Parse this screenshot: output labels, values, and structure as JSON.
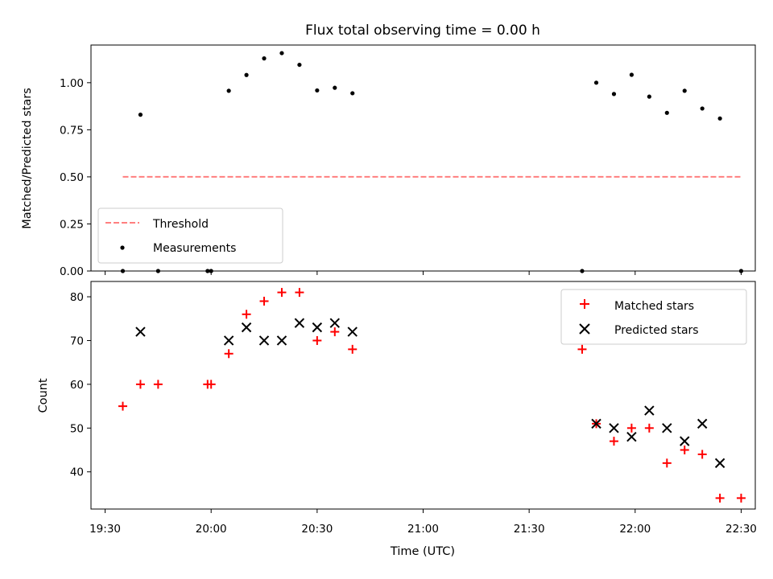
{
  "chart_data": [
    {
      "type": "scatter",
      "title": "Flux total observing time = 0.00 h",
      "ylabel": "Matched/Predicted stars",
      "xlabel": "",
      "xlim": [
        "19:26",
        "22:34"
      ],
      "ylim": [
        0,
        1.2
      ],
      "x_ticks": [
        "19:30",
        "20:00",
        "20:30",
        "21:00",
        "21:30",
        "22:00",
        "22:30"
      ],
      "x_tick_labels_visible": false,
      "y_ticks": [
        0,
        0.25,
        0.5,
        0.75,
        1.0
      ],
      "y_tick_labels": [
        "0.00",
        "0.25",
        "0.50",
        "0.75",
        "1.00"
      ],
      "grid": false,
      "legend_position": "lower-left",
      "series": [
        {
          "name": "Threshold",
          "kind": "line",
          "style": "dashed",
          "color": "#ff7f7f",
          "x": [
            "19:35",
            "22:30"
          ],
          "y": [
            0.5,
            0.5
          ]
        },
        {
          "name": "Measurements",
          "kind": "scatter",
          "marker": "dot",
          "color": "#000000",
          "x": [
            "19:35",
            "19:40",
            "19:45",
            "19:59",
            "20:00",
            "20:05",
            "20:10",
            "20:15",
            "20:20",
            "20:25",
            "20:30",
            "20:35",
            "20:40",
            "21:45",
            "21:49",
            "21:54",
            "21:59",
            "22:04",
            "22:09",
            "22:14",
            "22:19",
            "22:24",
            "22:30"
          ],
          "y": [
            0.0,
            0.83,
            0.0,
            0.0,
            0.0,
            0.957,
            1.041,
            1.129,
            1.157,
            1.095,
            0.959,
            0.973,
            0.944,
            0.0,
            1.0,
            0.94,
            1.042,
            0.926,
            0.84,
            0.957,
            0.863,
            0.81,
            0.0
          ]
        }
      ]
    },
    {
      "type": "scatter",
      "title": "",
      "ylabel": "Count",
      "xlabel": "Time (UTC)",
      "xlim": [
        "19:26",
        "22:34"
      ],
      "ylim": [
        31.5,
        83.5
      ],
      "x_ticks": [
        "19:30",
        "20:00",
        "20:30",
        "21:00",
        "21:30",
        "22:00",
        "22:30"
      ],
      "x_tick_labels": [
        "19:30",
        "20:00",
        "20:30",
        "21:00",
        "21:30",
        "22:00",
        "22:30"
      ],
      "y_ticks": [
        40,
        50,
        60,
        70,
        80
      ],
      "y_tick_labels": [
        "40",
        "50",
        "60",
        "70",
        "80"
      ],
      "grid": false,
      "legend_position": "top-right",
      "series": [
        {
          "name": "Matched stars",
          "kind": "scatter",
          "marker": "plus",
          "color": "#ff0000",
          "x": [
            "19:35",
            "19:40",
            "19:45",
            "19:59",
            "20:00",
            "20:05",
            "20:10",
            "20:15",
            "20:20",
            "20:25",
            "20:30",
            "20:35",
            "20:40",
            "21:45",
            "21:49",
            "21:54",
            "21:59",
            "22:04",
            "22:09",
            "22:14",
            "22:19",
            "22:24",
            "22:30"
          ],
          "y": [
            55,
            60,
            60,
            60,
            60,
            67,
            76,
            79,
            81,
            81,
            70,
            72,
            68,
            68,
            51,
            47,
            50,
            50,
            42,
            45,
            44,
            34,
            34
          ]
        },
        {
          "name": "Predicted stars",
          "kind": "scatter",
          "marker": "x",
          "color": "#000000",
          "x": [
            "19:40",
            "20:05",
            "20:10",
            "20:15",
            "20:20",
            "20:25",
            "20:30",
            "20:35",
            "20:40",
            "21:49",
            "21:54",
            "21:59",
            "22:04",
            "22:09",
            "22:14",
            "22:19",
            "22:24"
          ],
          "y": [
            72,
            70,
            73,
            70,
            70,
            74,
            73,
            74,
            72,
            51,
            50,
            48,
            54,
            50,
            47,
            51,
            42
          ]
        }
      ]
    }
  ]
}
